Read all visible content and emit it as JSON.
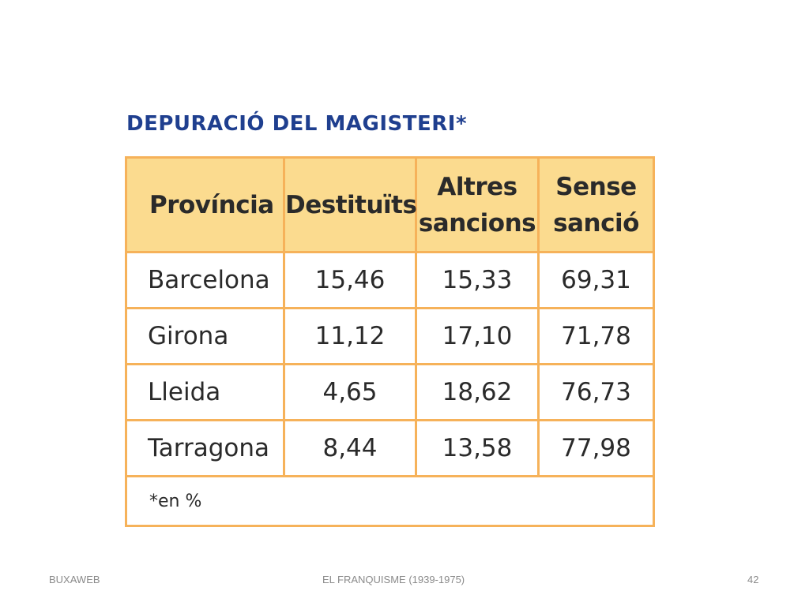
{
  "title": "DEPURACIÓ DEL MAGISTERI*",
  "table": {
    "headers": [
      [
        "Província"
      ],
      [
        "Destituïts"
      ],
      [
        "Altres",
        "sancions"
      ],
      [
        "Sense",
        "sanció"
      ]
    ],
    "rows": [
      {
        "province": "Barcelona",
        "destituits": "15,46",
        "altres": "15,33",
        "sense": "69,31"
      },
      {
        "province": "Girona",
        "destituits": "11,12",
        "altres": "17,10",
        "sense": "71,78"
      },
      {
        "province": "Lleida",
        "destituits": "4,65",
        "altres": "18,62",
        "sense": "76,73"
      },
      {
        "province": "Tarragona",
        "destituits": "8,44",
        "altres": "13,58",
        "sense": "77,98"
      }
    ],
    "footnote": "*en %"
  },
  "footer": {
    "left": "BUXAWEB",
    "center": "EL FRANQUISME (1939-1975)",
    "page_number": "42"
  }
}
